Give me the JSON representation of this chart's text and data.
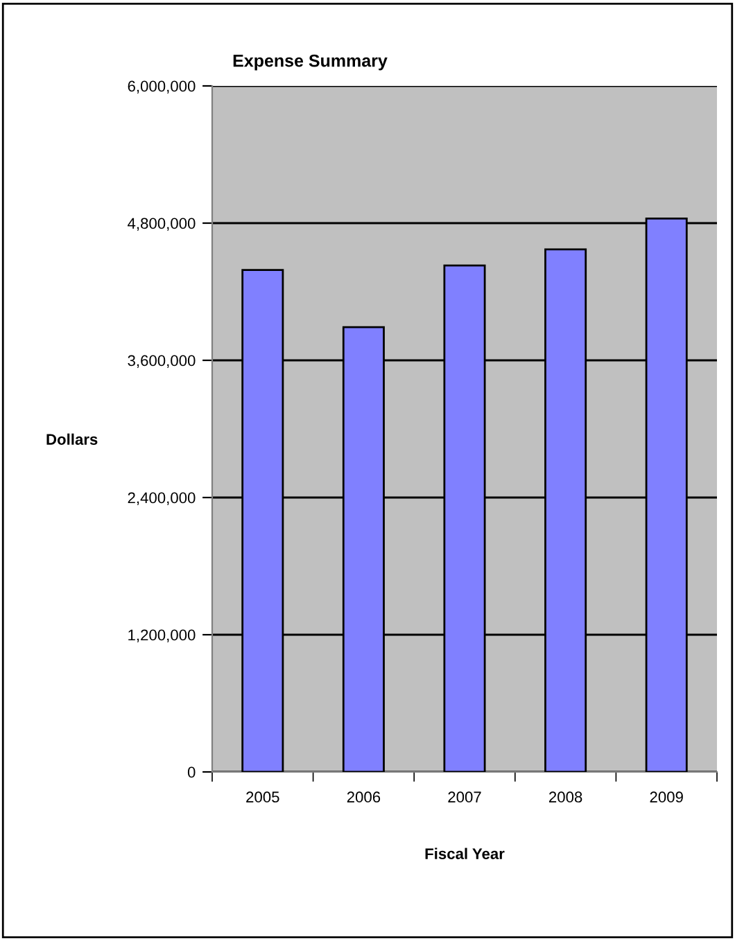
{
  "chart_data": {
    "type": "bar",
    "title": "Expense Summary",
    "xlabel": "Fiscal Year",
    "ylabel": "Dollars",
    "categories": [
      "2005",
      "2006",
      "2007",
      "2008",
      "2009"
    ],
    "series": [
      {
        "color": "#8080ff",
        "values": [
          4390000,
          3890000,
          4430000,
          4570000,
          4840000
        ]
      }
    ],
    "ylim": [
      0,
      6000000
    ],
    "yticks": [
      {
        "value": 0,
        "label": "0"
      },
      {
        "value": 1200000,
        "label": "1,200,000"
      },
      {
        "value": 2400000,
        "label": "2,400,000"
      },
      {
        "value": 3600000,
        "label": "3,600,000"
      },
      {
        "value": 4800000,
        "label": "4,800,000"
      },
      {
        "value": 6000000,
        "label": "6,000,000"
      }
    ],
    "grid": "y",
    "legend": false
  }
}
